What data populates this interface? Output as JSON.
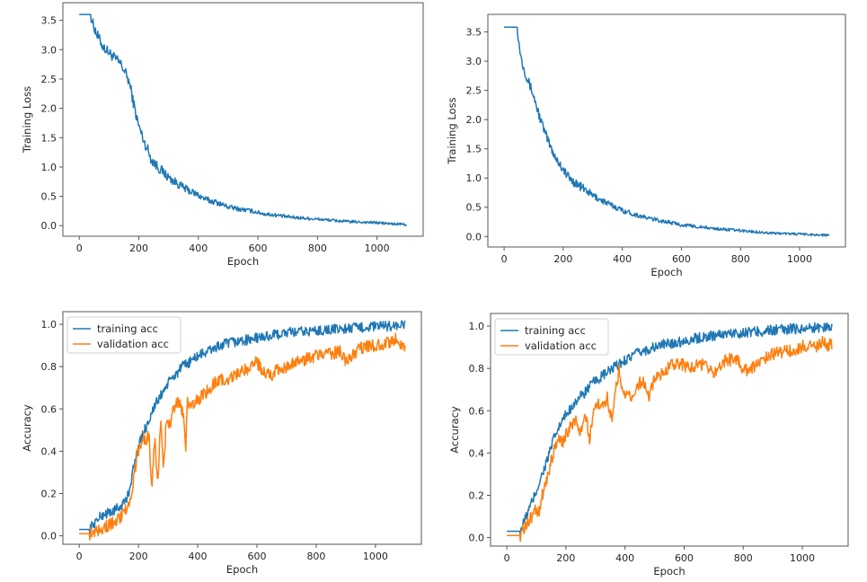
{
  "chart_data": [
    {
      "id": "loss-left",
      "type": "line",
      "title": "",
      "xlabel": "Epoch",
      "ylabel": "Training Loss",
      "xlim": [
        -55,
        1155
      ],
      "ylim": [
        -0.18,
        3.8
      ],
      "xticks": [
        0,
        200,
        400,
        600,
        800,
        1000
      ],
      "yticks": [
        0.0,
        0.5,
        1.0,
        1.5,
        2.0,
        2.5,
        3.0,
        3.5
      ],
      "ytick_labels": [
        "0.0",
        "0.5",
        "1.0",
        "1.5",
        "2.0",
        "2.5",
        "3.0",
        "3.5"
      ],
      "grid": false,
      "legend": null,
      "series": [
        {
          "name": "training loss",
          "color": "#1f77b4",
          "x": [
            0,
            20,
            38,
            45,
            60,
            80,
            100,
            120,
            140,
            160,
            170,
            180,
            190,
            200,
            210,
            220,
            230,
            240,
            250,
            260,
            280,
            300,
            320,
            340,
            360,
            380,
            400,
            420,
            440,
            460,
            480,
            500,
            540,
            580,
            620,
            660,
            700,
            750,
            800,
            850,
            900,
            950,
            1000,
            1050,
            1100
          ],
          "y": [
            3.6,
            3.6,
            3.6,
            3.45,
            3.25,
            3.05,
            2.95,
            2.85,
            2.75,
            2.55,
            2.4,
            2.15,
            1.9,
            1.7,
            1.55,
            1.4,
            1.3,
            1.15,
            1.08,
            1.02,
            0.92,
            0.82,
            0.75,
            0.68,
            0.62,
            0.57,
            0.52,
            0.46,
            0.42,
            0.4,
            0.36,
            0.32,
            0.28,
            0.25,
            0.2,
            0.18,
            0.15,
            0.13,
            0.11,
            0.09,
            0.07,
            0.06,
            0.05,
            0.03,
            0.02
          ],
          "noise": 0.09
        }
      ]
    },
    {
      "id": "loss-right",
      "type": "line",
      "title": "",
      "xlabel": "Epoch",
      "ylabel": "Training Loss",
      "xlim": [
        -55,
        1155
      ],
      "ylim": [
        -0.18,
        3.8
      ],
      "xticks": [
        0,
        200,
        400,
        600,
        800,
        1000
      ],
      "yticks": [
        0.0,
        0.5,
        1.0,
        1.5,
        2.0,
        2.5,
        3.0,
        3.5
      ],
      "ytick_labels": [
        "0.0",
        "0.5",
        "1.0",
        "1.5",
        "2.0",
        "2.5",
        "3.0",
        "3.5"
      ],
      "grid": false,
      "legend": null,
      "series": [
        {
          "name": "training loss",
          "color": "#1f77b4",
          "x": [
            0,
            30,
            45,
            50,
            60,
            75,
            90,
            100,
            120,
            140,
            160,
            180,
            200,
            220,
            240,
            260,
            280,
            300,
            330,
            360,
            400,
            440,
            480,
            520,
            560,
            600,
            650,
            700,
            750,
            800,
            850,
            900,
            950,
            1000,
            1050,
            1100
          ],
          "y": [
            3.58,
            3.58,
            3.58,
            3.3,
            3.0,
            2.75,
            2.55,
            2.4,
            2.05,
            1.75,
            1.5,
            1.3,
            1.15,
            1.0,
            0.92,
            0.85,
            0.78,
            0.7,
            0.62,
            0.54,
            0.45,
            0.38,
            0.32,
            0.28,
            0.24,
            0.2,
            0.17,
            0.14,
            0.12,
            0.1,
            0.08,
            0.06,
            0.05,
            0.04,
            0.03,
            0.02
          ],
          "noise": 0.08
        }
      ]
    },
    {
      "id": "acc-left",
      "type": "line",
      "title": "",
      "xlabel": "Epoch",
      "ylabel": "Accuracy",
      "xlim": [
        -55,
        1155
      ],
      "ylim": [
        -0.04,
        1.06
      ],
      "xticks": [
        0,
        200,
        400,
        600,
        800,
        1000
      ],
      "yticks": [
        0.0,
        0.2,
        0.4,
        0.6,
        0.8,
        1.0
      ],
      "ytick_labels": [
        "0.0",
        "0.2",
        "0.4",
        "0.6",
        "0.8",
        "1.0"
      ],
      "grid": false,
      "legend": {
        "position": "upper-left",
        "entries": [
          "training acc",
          "validation acc"
        ]
      },
      "series": [
        {
          "name": "training acc",
          "color": "#1f77b4",
          "x": [
            0,
            20,
            35,
            50,
            80,
            100,
            120,
            140,
            160,
            170,
            180,
            190,
            200,
            215,
            230,
            250,
            270,
            290,
            310,
            330,
            350,
            380,
            400,
            430,
            460,
            500,
            540,
            580,
            620,
            660,
            700,
            750,
            800,
            850,
            900,
            950,
            1000,
            1050,
            1100
          ],
          "y": [
            0.03,
            0.03,
            0.03,
            0.06,
            0.1,
            0.11,
            0.12,
            0.14,
            0.17,
            0.22,
            0.3,
            0.36,
            0.42,
            0.48,
            0.53,
            0.6,
            0.65,
            0.7,
            0.74,
            0.77,
            0.8,
            0.83,
            0.85,
            0.87,
            0.89,
            0.91,
            0.92,
            0.93,
            0.94,
            0.95,
            0.96,
            0.965,
            0.97,
            0.975,
            0.98,
            0.985,
            0.99,
            0.993,
            0.995
          ],
          "noise": 0.025
        },
        {
          "name": "validation acc",
          "color": "#ff7f0e",
          "x": [
            0,
            20,
            35,
            50,
            80,
            100,
            120,
            140,
            160,
            175,
            185,
            195,
            205,
            215,
            225,
            235,
            245,
            255,
            265,
            275,
            285,
            295,
            305,
            320,
            335,
            350,
            360,
            365,
            370,
            385,
            400,
            430,
            460,
            500,
            540,
            580,
            600,
            620,
            650,
            680,
            700,
            720,
            760,
            800,
            840,
            880,
            900,
            940,
            980,
            1010,
            1040,
            1070,
            1085,
            1100
          ],
          "y": [
            0.01,
            0.01,
            0.01,
            0.02,
            0.04,
            0.05,
            0.07,
            0.09,
            0.13,
            0.17,
            0.28,
            0.38,
            0.42,
            0.47,
            0.44,
            0.48,
            0.24,
            0.46,
            0.24,
            0.55,
            0.32,
            0.57,
            0.52,
            0.6,
            0.64,
            0.58,
            0.43,
            0.66,
            0.62,
            0.63,
            0.64,
            0.68,
            0.73,
            0.74,
            0.77,
            0.8,
            0.82,
            0.78,
            0.76,
            0.8,
            0.79,
            0.82,
            0.83,
            0.85,
            0.86,
            0.87,
            0.82,
            0.88,
            0.9,
            0.9,
            0.91,
            0.93,
            0.91,
            0.9
          ],
          "noise": 0.03
        }
      ]
    },
    {
      "id": "acc-right",
      "type": "line",
      "title": "",
      "xlabel": "Epoch",
      "ylabel": "Accuracy",
      "xlim": [
        -55,
        1155
      ],
      "ylim": [
        -0.04,
        1.06
      ],
      "xticks": [
        0,
        200,
        400,
        600,
        800,
        1000
      ],
      "yticks": [
        0.0,
        0.2,
        0.4,
        0.6,
        0.8,
        1.0
      ],
      "ytick_labels": [
        "0.0",
        "0.2",
        "0.4",
        "0.6",
        "0.8",
        "1.0"
      ],
      "grid": false,
      "legend": {
        "position": "upper-left",
        "entries": [
          "training acc",
          "validation acc"
        ]
      },
      "series": [
        {
          "name": "training acc",
          "color": "#1f77b4",
          "x": [
            0,
            20,
            45,
            60,
            80,
            100,
            120,
            140,
            160,
            180,
            200,
            230,
            260,
            290,
            320,
            350,
            380,
            410,
            440,
            480,
            520,
            560,
            600,
            650,
            700,
            750,
            800,
            850,
            900,
            950,
            1000,
            1050,
            1100
          ],
          "y": [
            0.03,
            0.03,
            0.03,
            0.08,
            0.15,
            0.22,
            0.3,
            0.38,
            0.47,
            0.53,
            0.58,
            0.64,
            0.68,
            0.73,
            0.76,
            0.79,
            0.82,
            0.85,
            0.87,
            0.89,
            0.91,
            0.92,
            0.93,
            0.945,
            0.955,
            0.965,
            0.97,
            0.975,
            0.98,
            0.985,
            0.99,
            0.993,
            0.995
          ],
          "noise": 0.025
        },
        {
          "name": "validation acc",
          "color": "#ff7f0e",
          "x": [
            0,
            20,
            45,
            60,
            80,
            100,
            110,
            120,
            140,
            160,
            175,
            190,
            205,
            220,
            235,
            250,
            265,
            280,
            300,
            320,
            340,
            355,
            370,
            380,
            395,
            420,
            440,
            460,
            480,
            500,
            540,
            580,
            620,
            660,
            700,
            740,
            780,
            800,
            820,
            860,
            900,
            940,
            980,
            1010,
            1040,
            1070,
            1085,
            1100
          ],
          "y": [
            0.01,
            0.01,
            0.01,
            0.04,
            0.09,
            0.14,
            0.11,
            0.2,
            0.3,
            0.42,
            0.48,
            0.45,
            0.5,
            0.53,
            0.56,
            0.5,
            0.58,
            0.47,
            0.64,
            0.62,
            0.66,
            0.56,
            0.72,
            0.79,
            0.68,
            0.66,
            0.72,
            0.74,
            0.66,
            0.75,
            0.8,
            0.83,
            0.8,
            0.82,
            0.78,
            0.84,
            0.84,
            0.8,
            0.79,
            0.84,
            0.87,
            0.88,
            0.89,
            0.91,
            0.9,
            0.93,
            0.9,
            0.92
          ],
          "noise": 0.03
        }
      ]
    }
  ]
}
